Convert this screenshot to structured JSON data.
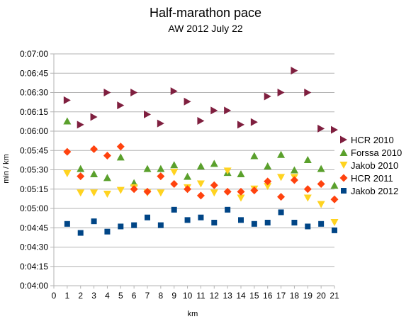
{
  "chart_data": {
    "type": "scatter",
    "title": "Half-marathon pace",
    "subtitle": "AW 2012 July 22",
    "xlabel": "km",
    "ylabel": "min / km",
    "xlim": [
      0,
      21
    ],
    "x_ticks": [
      "0",
      "1",
      "2",
      "3",
      "4",
      "5",
      "6",
      "7",
      "8",
      "9",
      "10",
      "11",
      "12",
      "13",
      "14",
      "15",
      "16",
      "17",
      "18",
      "19",
      "20",
      "21"
    ],
    "ylim": [
      "0:04:00",
      "0:07:00"
    ],
    "y_ticks": [
      "0:04:00",
      "0:04:15",
      "0:04:30",
      "0:04:45",
      "0:05:00",
      "0:05:15",
      "0:05:30",
      "0:05:45",
      "0:06:00",
      "0:06:15",
      "0:06:30",
      "0:06:45",
      "0:07:00"
    ],
    "grid": true,
    "legend_position": "right",
    "x": [
      1,
      2,
      3,
      4,
      5,
      6,
      7,
      8,
      9,
      10,
      11,
      12,
      13,
      14,
      15,
      16,
      17,
      18,
      19,
      20,
      21
    ],
    "series": [
      {
        "name": "HCR 2010",
        "marker": "triangle-right",
        "color": "#7f1f3f",
        "values": [
          "0:06:24",
          "0:06:05",
          "0:06:11",
          "0:06:30",
          "0:06:20",
          "0:06:30",
          "0:06:13",
          "0:06:06",
          "0:06:31",
          "0:06:23",
          "0:06:08",
          "0:06:16",
          "0:06:16",
          "0:06:05",
          "0:06:07",
          "0:06:27",
          "0:06:30",
          "0:06:47",
          "0:06:30",
          "0:06:02",
          "0:06:01"
        ]
      },
      {
        "name": "Forssa 2010",
        "marker": "triangle-up",
        "color": "#5aa02c",
        "values": [
          "0:06:08",
          "0:05:31",
          "0:05:27",
          "0:05:24",
          "0:05:40",
          "0:05:20",
          "0:05:31",
          "0:05:31",
          "0:05:34",
          "0:05:25",
          "0:05:33",
          "0:05:35",
          "0:05:28",
          "0:05:27",
          "0:05:41",
          "0:05:33",
          "0:05:42",
          "0:05:30",
          "0:05:38",
          "0:05:31",
          "0:05:18"
        ]
      },
      {
        "name": "Jakob 2010",
        "marker": "triangle-down",
        "color": "#ffd320",
        "values": [
          "0:05:27",
          "0:05:12",
          "0:05:12",
          "0:05:11",
          "0:05:14",
          "0:05:16",
          "0:05:12",
          "0:05:12",
          "0:05:28",
          "0:05:16",
          "0:05:19",
          "0:05:12",
          "0:05:29",
          "0:05:08",
          "0:05:15",
          "0:05:17",
          "0:05:24",
          "0:05:24",
          "0:05:08",
          "0:05:03",
          "0:04:49"
        ]
      },
      {
        "name": "HCR 2011",
        "marker": "diamond",
        "color": "#ff420e",
        "values": [
          "0:05:44",
          "0:05:25",
          "0:05:46",
          "0:05:41",
          "0:05:48",
          "0:05:15",
          "0:05:13",
          "0:05:25",
          "0:05:19",
          "0:05:15",
          "0:05:10",
          "0:05:18",
          "0:05:13",
          "0:05:13",
          "0:05:14",
          "0:05:21",
          "0:05:09",
          "0:05:22",
          "0:05:15",
          "0:05:19",
          "0:05:07"
        ]
      },
      {
        "name": "Jakob 2012",
        "marker": "square",
        "color": "#004586",
        "values": [
          "0:04:48",
          "0:04:41",
          "0:04:50",
          "0:04:42",
          "0:04:46",
          "0:04:47",
          "0:04:53",
          "0:04:47",
          "0:04:59",
          "0:04:51",
          "0:04:53",
          "0:04:49",
          "0:04:59",
          "0:04:51",
          "0:04:48",
          "0:04:49",
          "0:04:57",
          "0:04:49",
          "0:04:46",
          "0:04:48",
          "0:04:43"
        ]
      }
    ]
  }
}
